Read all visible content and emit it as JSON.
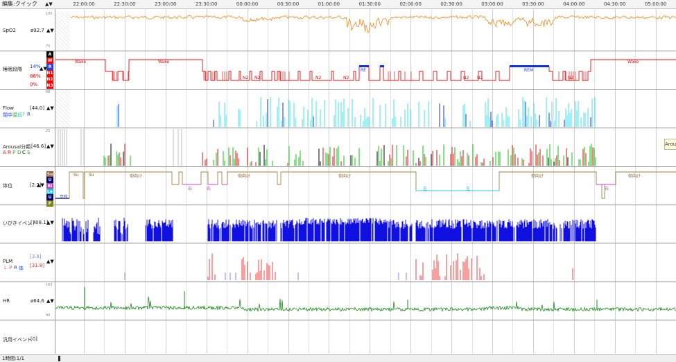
{
  "toolbar": {
    "mode_label": "編集:クイック",
    "arrows": "▲▼"
  },
  "time_ticks": [
    "22:00:00",
    "22:30:00",
    "23:00:00",
    "23:30:00",
    "00:00:00",
    "00:30:00",
    "01:00:00",
    "01:30:00",
    "02:00:00",
    "02:30:00",
    "03:00:00",
    "03:30:00",
    "04:00:00",
    "04:30:00",
    "05:00:00"
  ],
  "channels": {
    "spo2": {
      "name": "SpO2",
      "value": "ø92.7",
      "scale_top": "100",
      "scale_bottom": "70",
      "color": "#f08a1a"
    },
    "stage": {
      "name": "睡眠段階",
      "pct_r": "14%",
      "pct_n": "86%",
      "pct_n3": "0%",
      "legend": [
        "A",
        "W",
        "R",
        "N1",
        "N2",
        "N3"
      ],
      "legend_colors": [
        "#000000",
        "#ff0000",
        "#2040ff",
        "#ff0000",
        "#ff0000",
        "#ff0000"
      ],
      "labels": {
        "wake1": "Wake",
        "wake2": "Wake",
        "wake3": "Wake",
        "rem1": "RE",
        "rem2": "REM",
        "n2": "N2"
      }
    },
    "flow": {
      "name": "Flow",
      "value": "[44.0]",
      "legend": [
        "閉",
        "中",
        "混",
        "低",
        "?",
        "R"
      ],
      "legend_colors": [
        "#2040ff",
        "#2040ff",
        "#20a020",
        "#20c0c0",
        "#20c0c0",
        "#2040ff"
      ],
      "scale_top": "68"
    },
    "arousal": {
      "name": "Arousal分類",
      "value": "[46.6]",
      "legend": [
        "A",
        "R",
        "P",
        "D",
        "C",
        "S"
      ],
      "legend_colors": [
        "#ff0000",
        "#ff0000",
        "#20a020",
        "#20a020",
        "#000000",
        "#20a020"
      ],
      "scale_top": "25"
    },
    "position": {
      "name": "体位",
      "value": "[2.2]",
      "legend": [
        "Su",
        "U",
        "Ri",
        "Le",
        "U",
        "P"
      ],
      "legend_colors": [
        "#8b5a2b",
        "#000080",
        "#c040c0",
        "#20c0e0",
        "#000080",
        "#808000"
      ],
      "labels": {
        "standing": "立位",
        "su1": "Su",
        "su2": "Su",
        "supine": "仰向け",
        "right": "右",
        "left": "左"
      }
    },
    "snore": {
      "name": "いびきイベント",
      "value": "[708.1]",
      "color": "#1010e0"
    },
    "plm": {
      "name": "PLM",
      "value1": "[3.8]",
      "value2": "[31.8]",
      "legend": [
        "L",
        "P",
        "R",
        "体"
      ],
      "legend_colors": [
        "#ff6060",
        "#ff6060",
        "#2040ff",
        "#2040ff"
      ]
    },
    "hr": {
      "name": "HR",
      "value": "ø64.6",
      "scale_top": "163",
      "scale_bottom": "40",
      "color": "#1a8a1a"
    },
    "general": {
      "name": "汎用イベント",
      "value": "[0]"
    }
  },
  "popup": {
    "text": "Arousal"
  },
  "bottom": {
    "label": "1時間:1/1"
  }
}
